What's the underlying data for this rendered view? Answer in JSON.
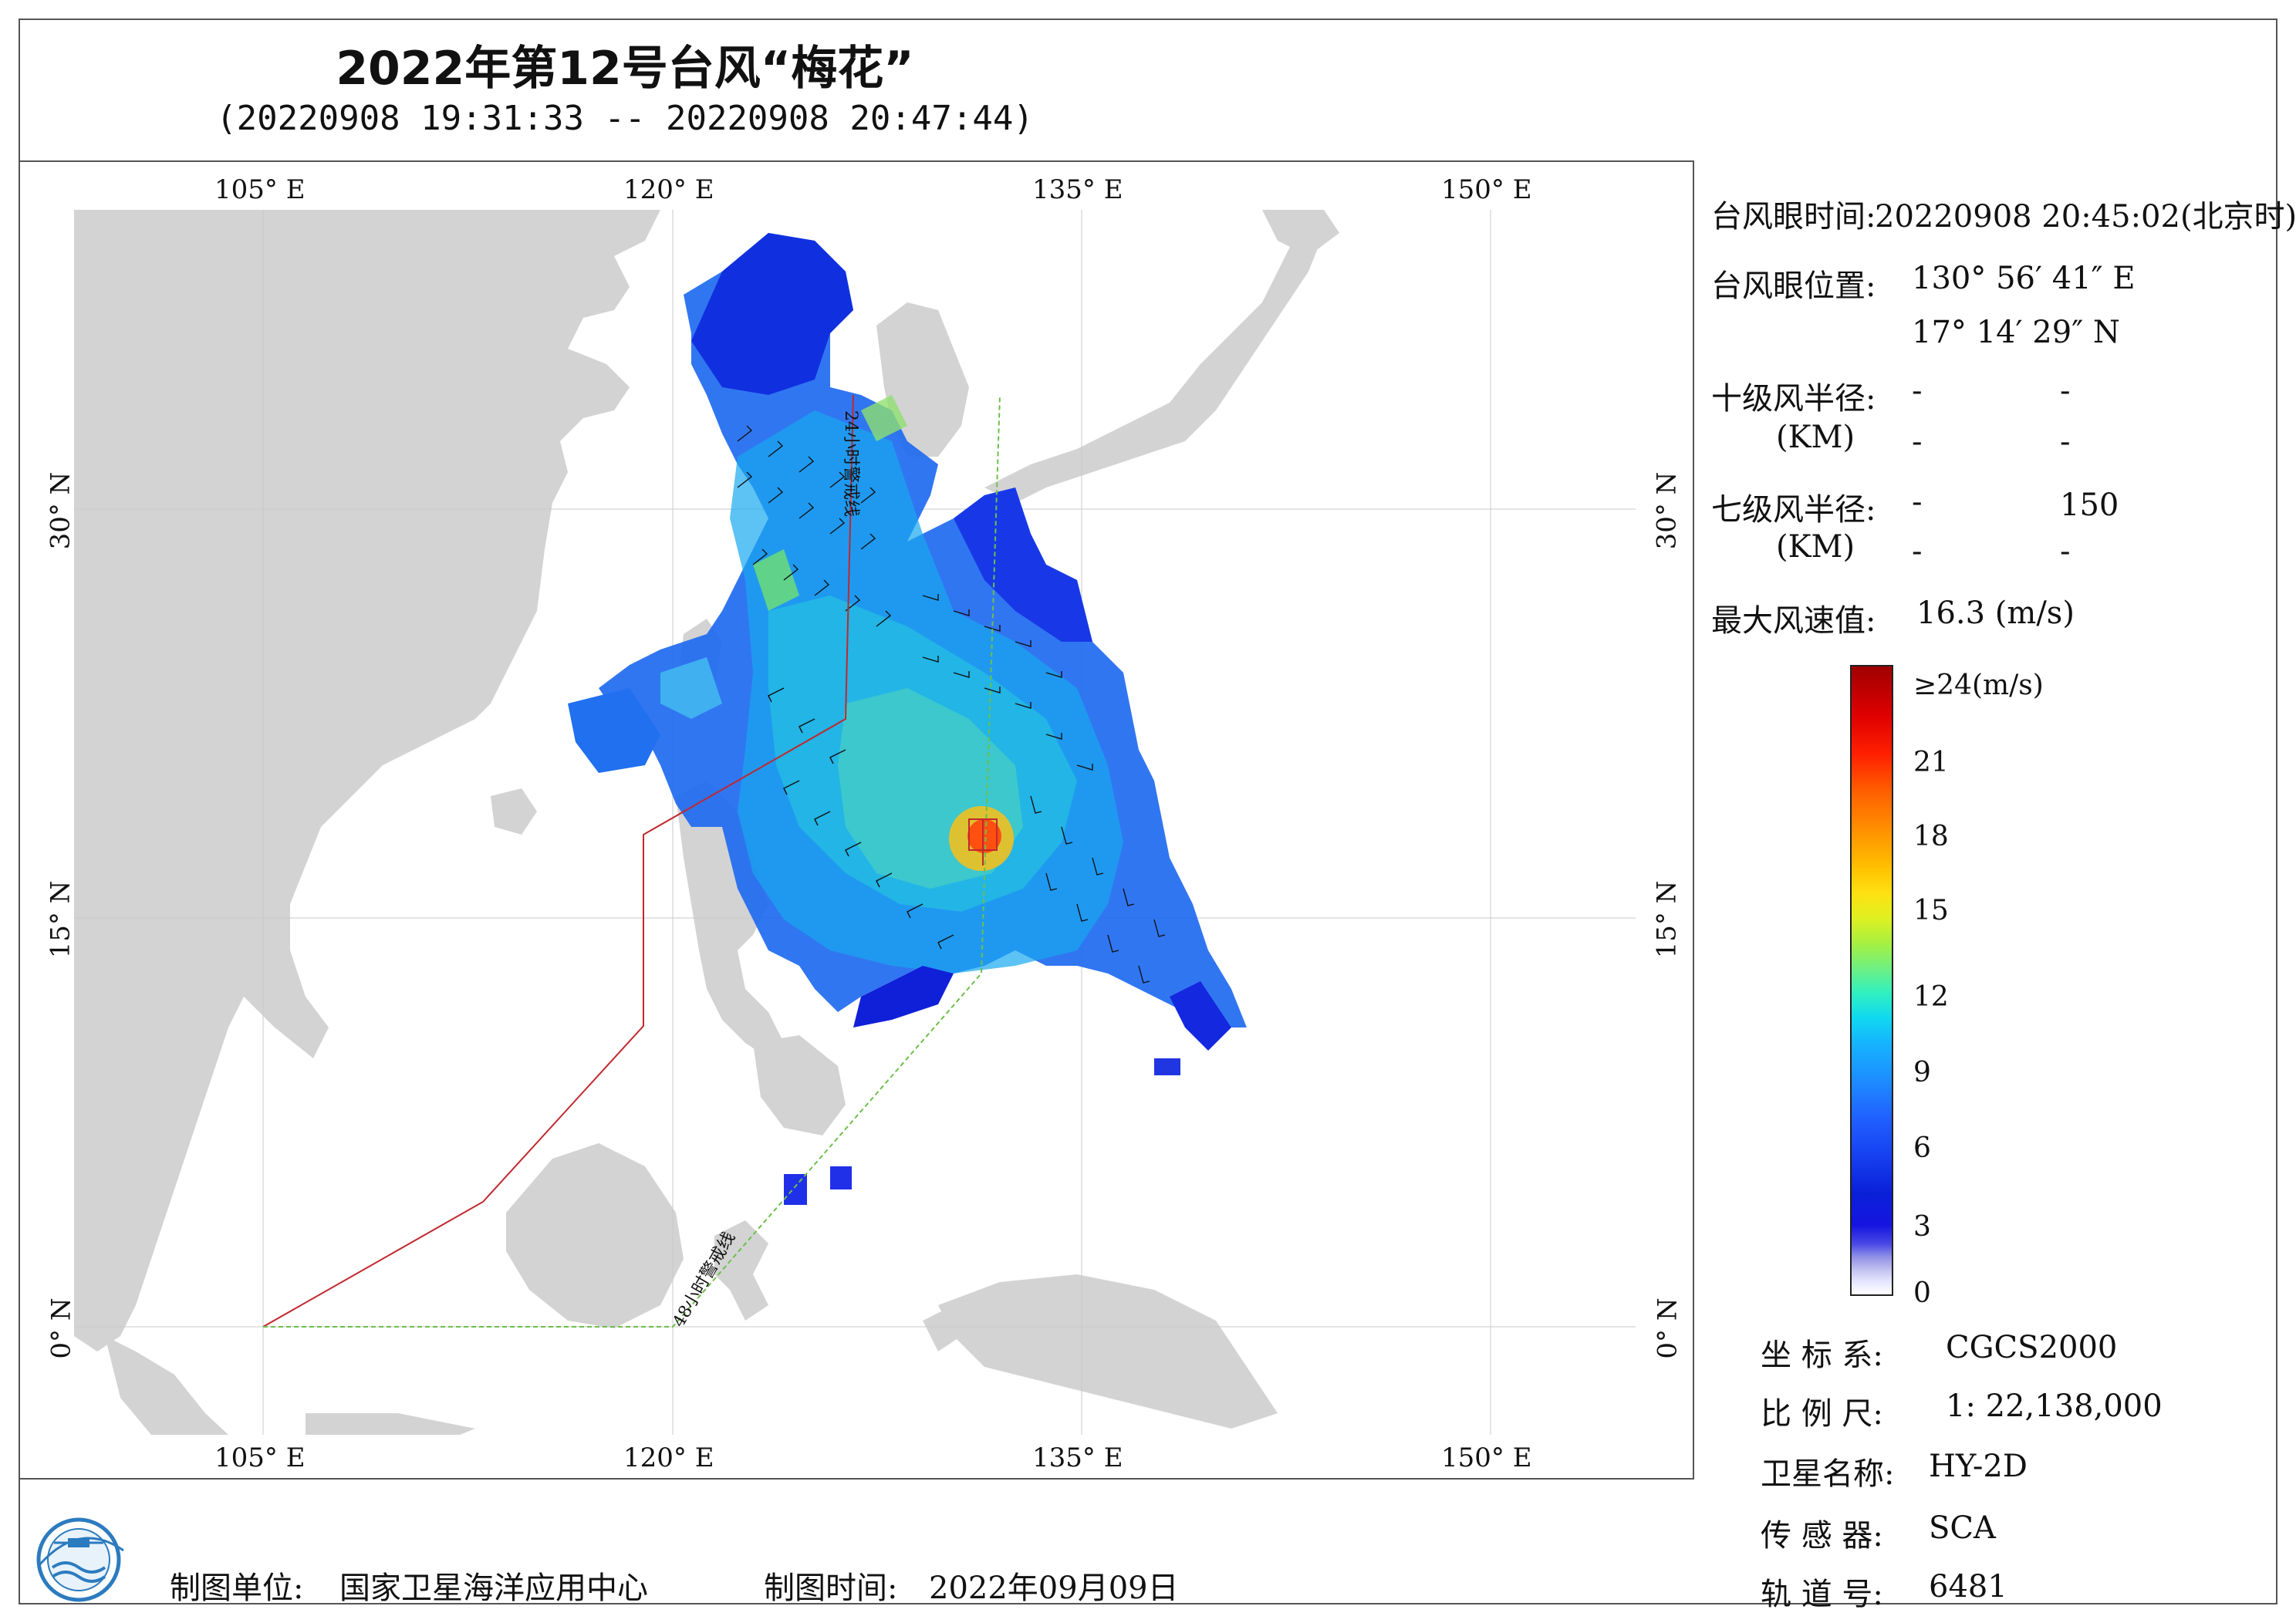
{
  "title": "2022年第12号台风“梅花”",
  "subtitle": "(20220908 19:31:33 -- 20220908 20:47:44)",
  "map": {
    "lon_labels": [
      "105° E",
      "120° E",
      "135° E",
      "150° E"
    ],
    "lat_labels": [
      "30° N",
      "15° N",
      "0° N"
    ],
    "warning_24h": "24小时警戒线",
    "warning_48h": "48小时警戒线",
    "colors": {
      "land": "#d3d3d3",
      "sea": "#ffffff",
      "line_24h": "#c0282d",
      "line_48h": "#6cc04a"
    }
  },
  "info": {
    "eye_time_label": "台风眼时间:",
    "eye_time_value": "20220908 20:45:02(北京时)",
    "eye_pos_label": "台风眼位置:",
    "eye_lon": "130° 56′ 41″ E",
    "eye_lat": "17° 14′ 29″ N",
    "r10_label": "十级风半径:",
    "r7_label": "七级风半径:",
    "km_label": "(KM)",
    "r10_values": [
      "-",
      "-",
      "-",
      "-"
    ],
    "r7_values": [
      "-",
      "150",
      "-",
      "-"
    ],
    "max_wind_label": "最大风速值:",
    "max_wind_value": "16.3 (m/s)"
  },
  "colorbar": {
    "ticks": [
      "≥24(m/s)",
      "21",
      "18",
      "15",
      "12",
      "9",
      "6",
      "3",
      "0"
    ]
  },
  "meta": {
    "crs_label": "坐 标 系:",
    "crs_value": "CGCS2000",
    "scale_label": "比 例 尺:",
    "scale_value": "1: 22,138,000",
    "sat_label": "卫星名称:",
    "sat_value": "HY-2D",
    "sensor_label": "传 感 器:",
    "sensor_value": "SCA",
    "orbit_label": "轨 道 号:",
    "orbit_value": "6481"
  },
  "footer": {
    "org_label": "制图单位:",
    "org_value": "国家卫星海洋应用中心",
    "date_label": "制图时间:",
    "date_value": "2022年09月09日"
  }
}
